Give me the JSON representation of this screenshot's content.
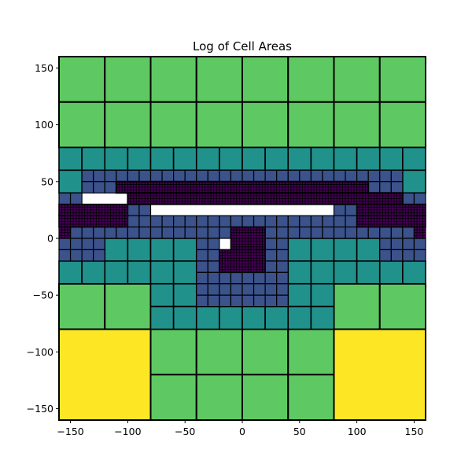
{
  "chart_data": {
    "type": "heatmap",
    "title": "Log of Cell Areas",
    "xlabel": "",
    "ylabel": "",
    "xlim": [
      -160,
      160
    ],
    "ylim": [
      -160,
      160
    ],
    "xticks": [
      -150,
      -100,
      -50,
      0,
      50,
      100,
      150
    ],
    "yticks": [
      -150,
      -100,
      -50,
      0,
      50,
      100,
      150
    ],
    "xtick_labels": [
      "−150",
      "−100",
      "−50",
      "0",
      "50",
      "100",
      "150"
    ],
    "ytick_labels": [
      "−150",
      "−100",
      "−50",
      "0",
      "50",
      "100",
      "150"
    ],
    "grid": false,
    "colormap": [
      "#fde725",
      "#5ec962",
      "#21918c",
      "#3b528b",
      "#440154"
    ],
    "cell_edge_color": "#000000",
    "cells_by_color": {
      "#fde725": [
        [
          -160,
          -160,
          80,
          80
        ],
        [
          80,
          -160,
          80,
          80
        ]
      ],
      "#5ec962": [
        [
          -160,
          120,
          40,
          40
        ],
        [
          -120,
          120,
          40,
          40
        ],
        [
          -80,
          120,
          40,
          40
        ],
        [
          -40,
          120,
          40,
          40
        ],
        [
          0,
          120,
          40,
          40
        ],
        [
          40,
          120,
          40,
          40
        ],
        [
          80,
          120,
          40,
          40
        ],
        [
          120,
          120,
          40,
          40
        ],
        [
          -160,
          80,
          40,
          40
        ],
        [
          -120,
          80,
          40,
          40
        ],
        [
          -80,
          80,
          40,
          40
        ],
        [
          -40,
          80,
          40,
          40
        ],
        [
          0,
          80,
          40,
          40
        ],
        [
          40,
          80,
          40,
          40
        ],
        [
          80,
          80,
          40,
          40
        ],
        [
          120,
          80,
          40,
          40
        ],
        [
          -160,
          -80,
          40,
          40
        ],
        [
          -120,
          -80,
          40,
          40
        ],
        [
          80,
          -80,
          40,
          40
        ],
        [
          120,
          -80,
          40,
          40
        ],
        [
          -80,
          -120,
          40,
          40
        ],
        [
          -40,
          -120,
          40,
          40
        ],
        [
          0,
          -120,
          40,
          40
        ],
        [
          40,
          -120,
          40,
          40
        ],
        [
          -80,
          -160,
          40,
          40
        ],
        [
          -40,
          -160,
          40,
          40
        ],
        [
          0,
          -160,
          40,
          40
        ],
        [
          40,
          -160,
          40,
          40
        ]
      ],
      "#21918c": [
        [
          -160,
          60,
          20,
          20
        ],
        [
          -140,
          60,
          20,
          20
        ],
        [
          -120,
          60,
          20,
          20
        ],
        [
          -100,
          60,
          20,
          20
        ],
        [
          -80,
          60,
          20,
          20
        ],
        [
          -60,
          60,
          20,
          20
        ],
        [
          -40,
          60,
          20,
          20
        ],
        [
          -20,
          60,
          20,
          20
        ],
        [
          0,
          60,
          20,
          20
        ],
        [
          20,
          60,
          20,
          20
        ],
        [
          40,
          60,
          20,
          20
        ],
        [
          60,
          60,
          20,
          20
        ],
        [
          80,
          60,
          20,
          20
        ],
        [
          100,
          60,
          20,
          20
        ],
        [
          120,
          60,
          20,
          20
        ],
        [
          140,
          60,
          20,
          20
        ],
        [
          -160,
          40,
          20,
          20
        ],
        [
          140,
          40,
          20,
          20
        ],
        [
          -120,
          -20,
          20,
          20
        ],
        [
          -100,
          -20,
          20,
          20
        ],
        [
          -80,
          -20,
          20,
          20
        ],
        [
          -60,
          -20,
          20,
          20
        ],
        [
          40,
          -20,
          20,
          20
        ],
        [
          60,
          -20,
          20,
          20
        ],
        [
          80,
          -20,
          20,
          20
        ],
        [
          100,
          -20,
          20,
          20
        ],
        [
          -120,
          -40,
          20,
          20
        ],
        [
          -100,
          -40,
          20,
          20
        ],
        [
          -80,
          -40,
          20,
          20
        ],
        [
          -60,
          -40,
          20,
          20
        ],
        [
          40,
          -40,
          20,
          20
        ],
        [
          60,
          -40,
          20,
          20
        ],
        [
          80,
          -40,
          20,
          20
        ],
        [
          100,
          -40,
          20,
          20
        ],
        [
          -160,
          -40,
          20,
          20
        ],
        [
          -140,
          -40,
          20,
          20
        ],
        [
          120,
          -40,
          20,
          20
        ],
        [
          140,
          -40,
          20,
          20
        ],
        [
          -80,
          -60,
          20,
          20
        ],
        [
          -60,
          -60,
          20,
          20
        ],
        [
          40,
          -60,
          20,
          20
        ],
        [
          60,
          -60,
          20,
          20
        ],
        [
          -80,
          -80,
          20,
          20
        ],
        [
          -60,
          -80,
          20,
          20
        ],
        [
          -40,
          -80,
          20,
          20
        ],
        [
          -20,
          -80,
          20,
          20
        ],
        [
          0,
          -80,
          20,
          20
        ],
        [
          20,
          -80,
          20,
          20
        ],
        [
          40,
          -80,
          20,
          20
        ],
        [
          60,
          -80,
          20,
          20
        ]
      ],
      "#3b528b": [
        [
          -140,
          50,
          10,
          10
        ],
        [
          -130,
          50,
          10,
          10
        ],
        [
          -120,
          50,
          10,
          10
        ],
        [
          -110,
          50,
          10,
          10
        ],
        [
          -100,
          50,
          10,
          10
        ],
        [
          -90,
          50,
          10,
          10
        ],
        [
          -80,
          50,
          10,
          10
        ],
        [
          -70,
          50,
          10,
          10
        ],
        [
          -60,
          50,
          10,
          10
        ],
        [
          -50,
          50,
          10,
          10
        ],
        [
          -40,
          50,
          10,
          10
        ],
        [
          -30,
          50,
          10,
          10
        ],
        [
          -20,
          50,
          10,
          10
        ],
        [
          -10,
          50,
          10,
          10
        ],
        [
          0,
          50,
          10,
          10
        ],
        [
          10,
          50,
          10,
          10
        ],
        [
          20,
          50,
          10,
          10
        ],
        [
          30,
          50,
          10,
          10
        ],
        [
          40,
          50,
          10,
          10
        ],
        [
          50,
          50,
          10,
          10
        ],
        [
          60,
          50,
          10,
          10
        ],
        [
          70,
          50,
          10,
          10
        ],
        [
          80,
          50,
          10,
          10
        ],
        [
          90,
          50,
          10,
          10
        ],
        [
          100,
          50,
          10,
          10
        ],
        [
          110,
          50,
          10,
          10
        ],
        [
          120,
          50,
          10,
          10
        ],
        [
          130,
          50,
          10,
          10
        ],
        [
          -140,
          40,
          10,
          10
        ],
        [
          -130,
          40,
          10,
          10
        ],
        [
          -120,
          40,
          10,
          10
        ],
        [
          -110,
          40,
          10,
          10
        ],
        [
          110,
          40,
          10,
          10
        ],
        [
          120,
          40,
          10,
          10
        ],
        [
          130,
          40,
          10,
          10
        ],
        [
          -160,
          30,
          10,
          10
        ],
        [
          -150,
          30,
          10,
          10
        ],
        [
          140,
          30,
          10,
          10
        ],
        [
          150,
          30,
          10,
          10
        ],
        [
          -100,
          20,
          10,
          10
        ],
        [
          -90,
          20,
          10,
          10
        ],
        [
          80,
          20,
          10,
          10
        ],
        [
          90,
          20,
          10,
          10
        ],
        [
          -100,
          10,
          10,
          10
        ],
        [
          -90,
          10,
          10,
          10
        ],
        [
          -80,
          10,
          10,
          10
        ],
        [
          -70,
          10,
          10,
          10
        ],
        [
          -60,
          10,
          10,
          10
        ],
        [
          -50,
          10,
          10,
          10
        ],
        [
          -40,
          10,
          10,
          10
        ],
        [
          -30,
          10,
          10,
          10
        ],
        [
          -20,
          10,
          10,
          10
        ],
        [
          -10,
          10,
          10,
          10
        ],
        [
          0,
          10,
          10,
          10
        ],
        [
          10,
          10,
          10,
          10
        ],
        [
          20,
          10,
          10,
          10
        ],
        [
          30,
          10,
          10,
          10
        ],
        [
          40,
          10,
          10,
          10
        ],
        [
          50,
          10,
          10,
          10
        ],
        [
          60,
          10,
          10,
          10
        ],
        [
          70,
          10,
          10,
          10
        ],
        [
          80,
          10,
          10,
          10
        ],
        [
          90,
          10,
          10,
          10
        ],
        [
          -150,
          0,
          10,
          10
        ],
        [
          -140,
          0,
          10,
          10
        ],
        [
          -130,
          0,
          10,
          10
        ],
        [
          -120,
          0,
          10,
          10
        ],
        [
          -110,
          0,
          10,
          10
        ],
        [
          -100,
          0,
          10,
          10
        ],
        [
          -90,
          0,
          10,
          10
        ],
        [
          -80,
          0,
          10,
          10
        ],
        [
          -70,
          0,
          10,
          10
        ],
        [
          -60,
          0,
          10,
          10
        ],
        [
          -50,
          0,
          10,
          10
        ],
        [
          -40,
          0,
          10,
          10
        ],
        [
          -30,
          0,
          10,
          10
        ],
        [
          -20,
          0,
          10,
          10
        ],
        [
          20,
          0,
          10,
          10
        ],
        [
          30,
          0,
          10,
          10
        ],
        [
          40,
          0,
          10,
          10
        ],
        [
          50,
          0,
          10,
          10
        ],
        [
          60,
          0,
          10,
          10
        ],
        [
          70,
          0,
          10,
          10
        ],
        [
          80,
          0,
          10,
          10
        ],
        [
          90,
          0,
          10,
          10
        ],
        [
          100,
          0,
          10,
          10
        ],
        [
          110,
          0,
          10,
          10
        ],
        [
          120,
          0,
          10,
          10
        ],
        [
          130,
          0,
          10,
          10
        ],
        [
          140,
          0,
          10,
          10
        ],
        [
          -160,
          -10,
          10,
          10
        ],
        [
          -150,
          -10,
          10,
          10
        ],
        [
          -140,
          -10,
          10,
          10
        ],
        [
          -130,
          -10,
          10,
          10
        ],
        [
          -40,
          -10,
          10,
          10
        ],
        [
          -30,
          -10,
          10,
          10
        ],
        [
          20,
          -10,
          10,
          10
        ],
        [
          30,
          -10,
          10,
          10
        ],
        [
          120,
          -10,
          10,
          10
        ],
        [
          130,
          -10,
          10,
          10
        ],
        [
          140,
          -10,
          10,
          10
        ],
        [
          150,
          -10,
          10,
          10
        ],
        [
          -160,
          -20,
          10,
          10
        ],
        [
          -150,
          -20,
          10,
          10
        ],
        [
          -140,
          -20,
          10,
          10
        ],
        [
          -130,
          -20,
          10,
          10
        ],
        [
          -40,
          -20,
          10,
          10
        ],
        [
          -30,
          -20,
          10,
          10
        ],
        [
          20,
          -20,
          10,
          10
        ],
        [
          30,
          -20,
          10,
          10
        ],
        [
          120,
          -20,
          10,
          10
        ],
        [
          130,
          -20,
          10,
          10
        ],
        [
          140,
          -20,
          10,
          10
        ],
        [
          150,
          -20,
          10,
          10
        ],
        [
          -40,
          -30,
          10,
          10
        ],
        [
          -30,
          -30,
          10,
          10
        ],
        [
          20,
          -30,
          10,
          10
        ],
        [
          30,
          -30,
          10,
          10
        ],
        [
          -40,
          -40,
          10,
          10
        ],
        [
          -30,
          -40,
          10,
          10
        ],
        [
          -20,
          -40,
          10,
          10
        ],
        [
          -10,
          -40,
          10,
          10
        ],
        [
          0,
          -40,
          10,
          10
        ],
        [
          10,
          -40,
          10,
          10
        ],
        [
          20,
          -40,
          10,
          10
        ],
        [
          30,
          -40,
          10,
          10
        ],
        [
          -40,
          -50,
          10,
          10
        ],
        [
          -30,
          -50,
          10,
          10
        ],
        [
          -20,
          -50,
          10,
          10
        ],
        [
          -10,
          -50,
          10,
          10
        ],
        [
          0,
          -50,
          10,
          10
        ],
        [
          10,
          -50,
          10,
          10
        ],
        [
          20,
          -50,
          10,
          10
        ],
        [
          30,
          -50,
          10,
          10
        ],
        [
          -40,
          -60,
          10,
          10
        ],
        [
          -30,
          -60,
          10,
          10
        ],
        [
          -20,
          -60,
          10,
          10
        ],
        [
          -10,
          -60,
          10,
          10
        ],
        [
          0,
          -60,
          10,
          10
        ],
        [
          10,
          -60,
          10,
          10
        ],
        [
          20,
          -60,
          10,
          10
        ],
        [
          30,
          -60,
          10,
          10
        ]
      ],
      "#440154": [
        [
          -110,
          40,
          220,
          10
        ],
        [
          -160,
          20,
          60,
          10
        ],
        [
          -100,
          30,
          240,
          10
        ],
        [
          100,
          20,
          60,
          10
        ],
        [
          -160,
          10,
          60,
          10
        ],
        [
          100,
          10,
          60,
          10
        ],
        [
          -160,
          0,
          10,
          10
        ],
        [
          150,
          0,
          10,
          10
        ],
        [
          -10,
          -10,
          30,
          20
        ],
        [
          -20,
          -30,
          40,
          20
        ]
      ]
    }
  }
}
